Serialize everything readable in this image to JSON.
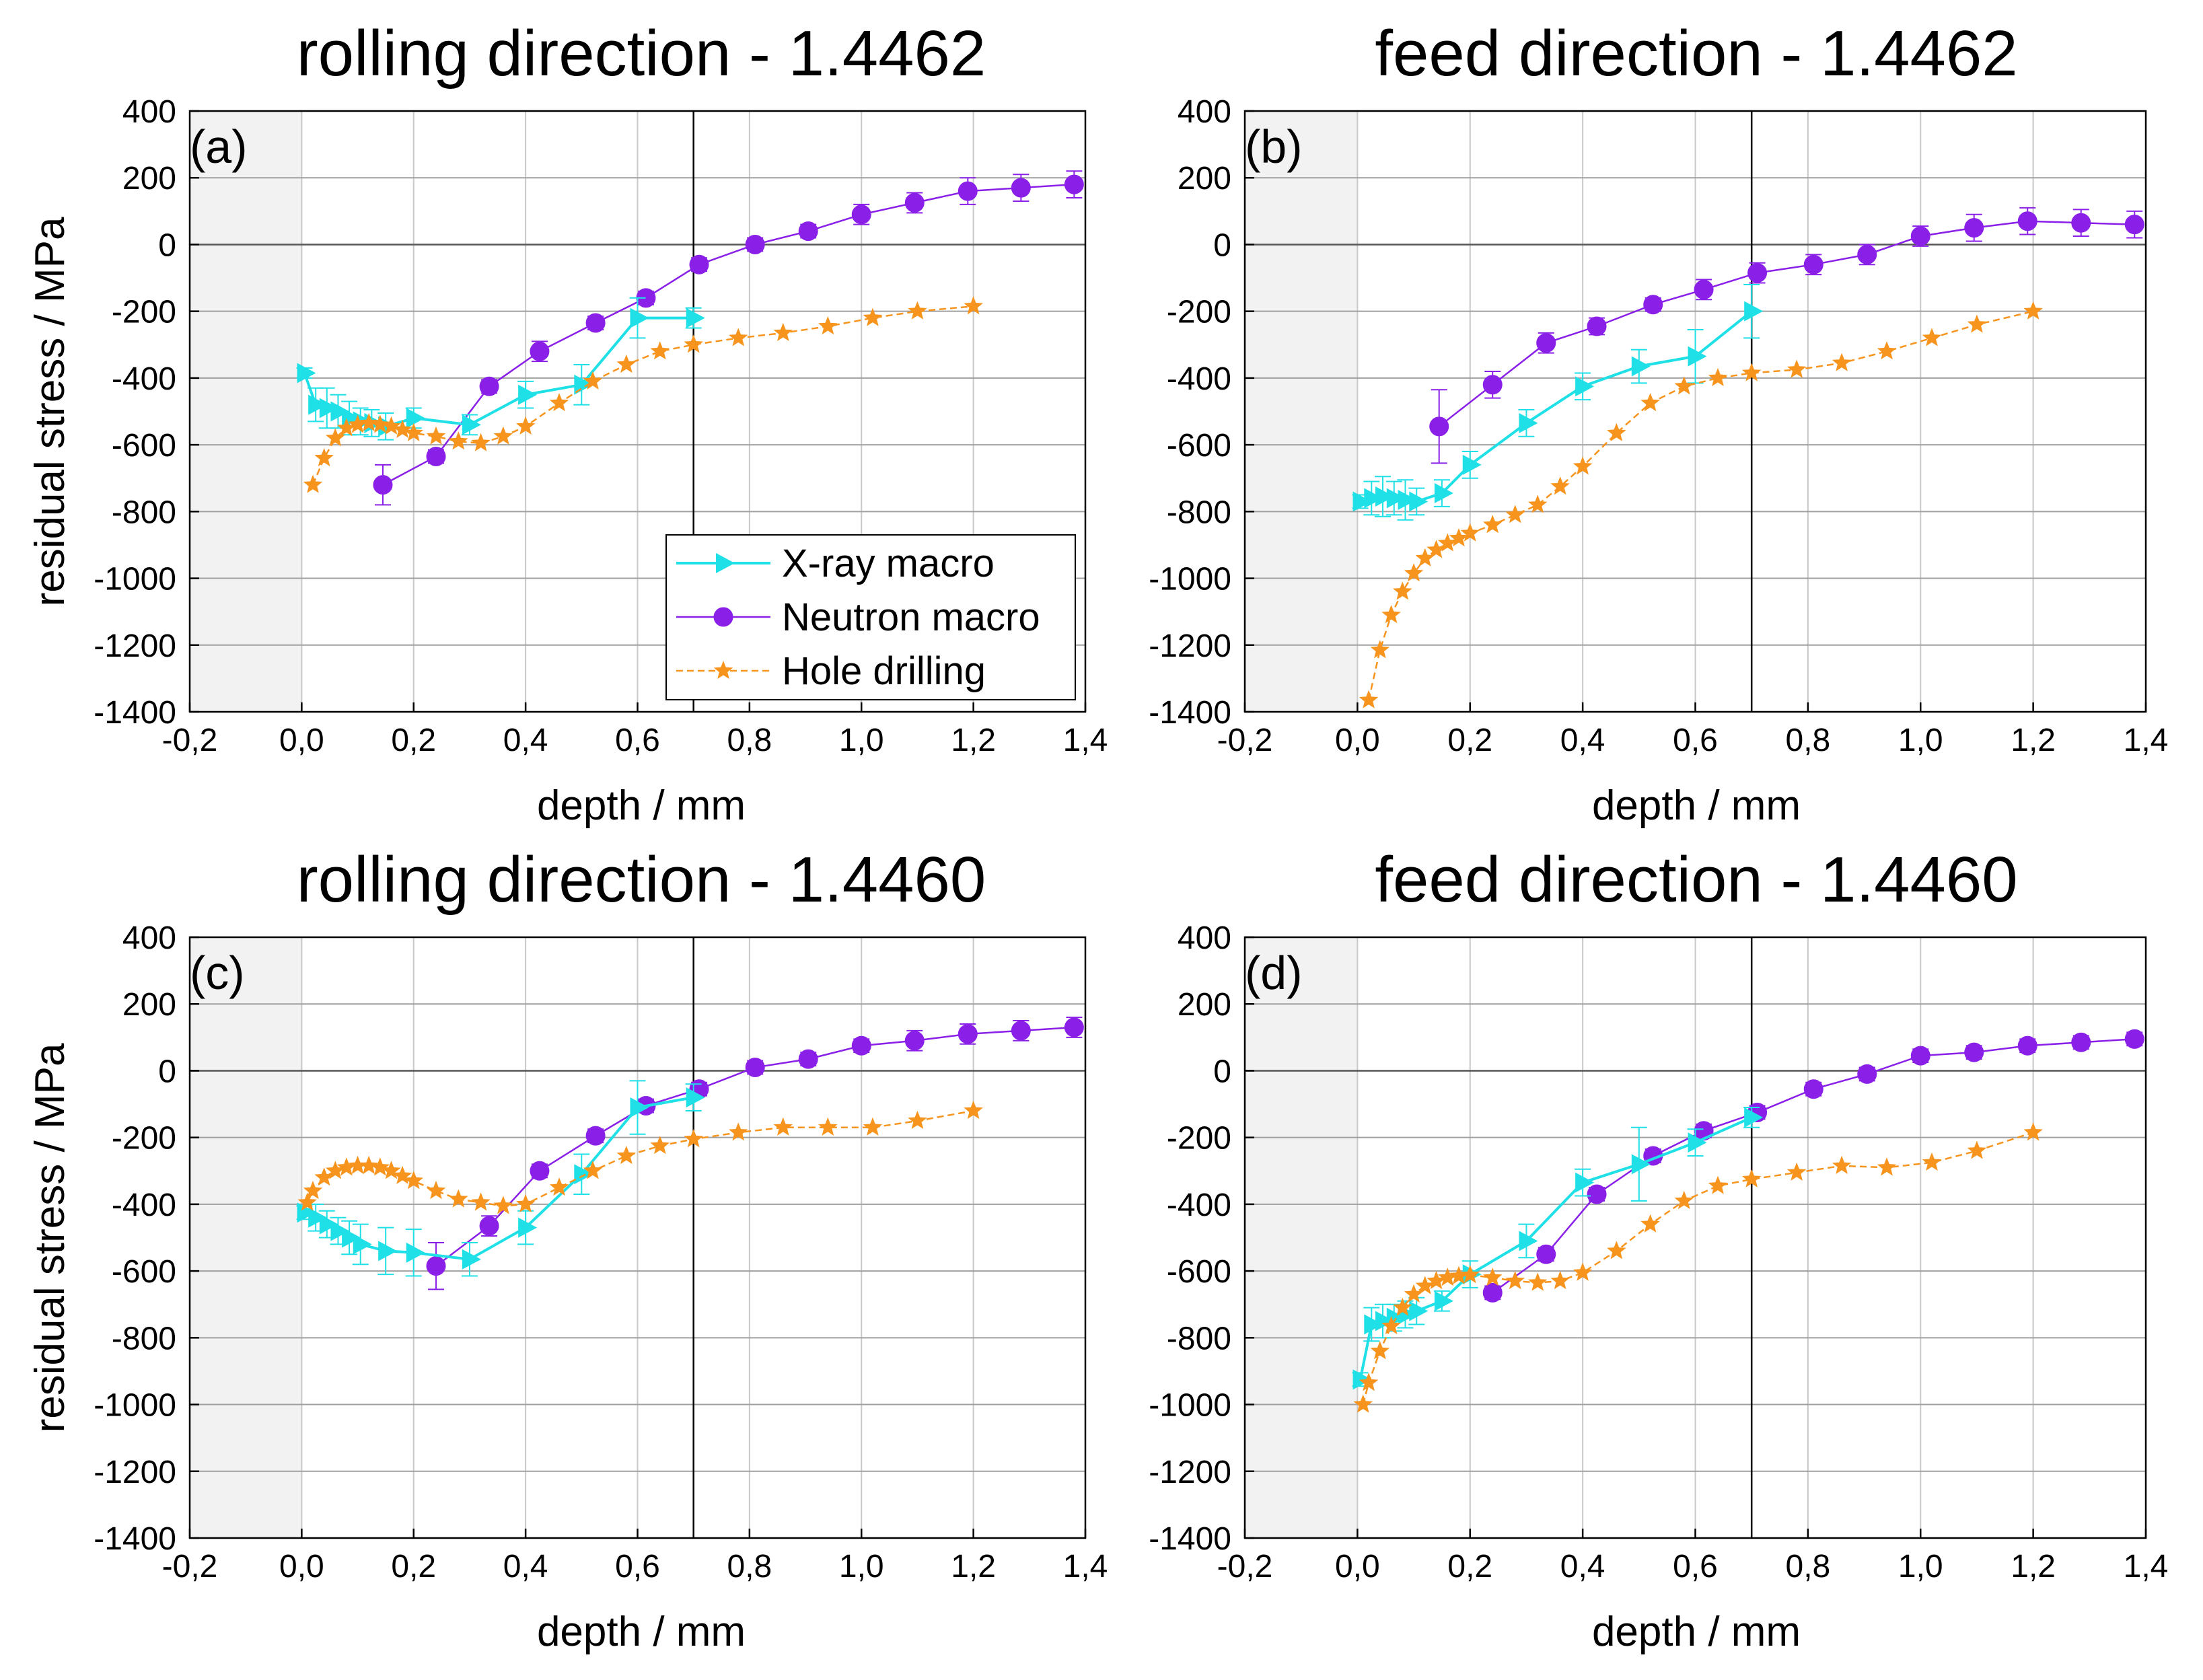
{
  "figure": {
    "x_ticks": [
      "-0,2",
      "0,0",
      "0,2",
      "0,4",
      "0,6",
      "0,8",
      "1,0",
      "1,2",
      "1,4"
    ],
    "y_ticks": [
      "400",
      "200",
      "0",
      "-200",
      "-400",
      "-600",
      "-800",
      "-1000",
      "-1200",
      "-1400"
    ],
    "colors": {
      "xray": "#1fe0e6",
      "neutron": "#8a20e8",
      "hole": "#f7941d"
    },
    "markers": {
      "xray": "triangle-right",
      "neutron": "circle",
      "hole": "star"
    },
    "shaded_region_x": [
      -0.2,
      0.0
    ],
    "vertical_line_x": 0.7,
    "legend": {
      "placement": "bottom-right of panel (a)",
      "entries": [
        "X-ray macro",
        "Neutron macro",
        "Hole drilling"
      ]
    }
  },
  "chart_data": [
    {
      "type": "line",
      "panel_label": "(a)",
      "title": "rolling direction - 1.4462",
      "xlabel": "depth / mm",
      "ylabel": "residual stress / MPa",
      "xlim": [
        -0.2,
        1.4
      ],
      "ylim": [
        -1400,
        400
      ],
      "grid": true,
      "series": [
        {
          "name": "X-ray macro",
          "key": "xray",
          "x": [
            0.005,
            0.025,
            0.045,
            0.065,
            0.085,
            0.105,
            0.125,
            0.15,
            0.2,
            0.3,
            0.4,
            0.5,
            0.6,
            0.7
          ],
          "y": [
            -385,
            -480,
            -490,
            -500,
            -520,
            -530,
            -535,
            -545,
            -520,
            -540,
            -450,
            -420,
            -220,
            -220
          ],
          "err": [
            15,
            50,
            60,
            50,
            50,
            40,
            40,
            40,
            30,
            30,
            40,
            60,
            60,
            30
          ]
        },
        {
          "name": "Neutron macro",
          "key": "neutron",
          "x": [
            0.145,
            0.24,
            0.335,
            0.425,
            0.525,
            0.615,
            0.71,
            0.81,
            0.905,
            1.0,
            1.095,
            1.19,
            1.285,
            1.38
          ],
          "y": [
            -720,
            -635,
            -425,
            -320,
            -235,
            -160,
            -60,
            0,
            40,
            90,
            125,
            160,
            170,
            180
          ],
          "err": [
            60,
            20,
            20,
            30,
            20,
            20,
            20,
            20,
            20,
            30,
            30,
            40,
            40,
            40
          ]
        },
        {
          "name": "Hole drilling",
          "key": "hole",
          "x": [
            0.02,
            0.04,
            0.06,
            0.08,
            0.1,
            0.12,
            0.14,
            0.16,
            0.18,
            0.2,
            0.24,
            0.28,
            0.32,
            0.36,
            0.4,
            0.46,
            0.52,
            0.58,
            0.64,
            0.7,
            0.78,
            0.86,
            0.94,
            1.02,
            1.1,
            1.2
          ],
          "y": [
            -720,
            -640,
            -580,
            -550,
            -540,
            -535,
            -540,
            -545,
            -555,
            -565,
            -575,
            -590,
            -595,
            -575,
            -545,
            -475,
            -410,
            -360,
            -320,
            -300,
            -280,
            -265,
            -245,
            -220,
            -200,
            -185
          ]
        }
      ]
    },
    {
      "type": "line",
      "panel_label": "(b)",
      "title": "feed direction - 1.4462",
      "xlabel": "depth / mm",
      "ylabel": "",
      "xlim": [
        -0.2,
        1.4
      ],
      "ylim": [
        -1400,
        400
      ],
      "grid": true,
      "series": [
        {
          "name": "X-ray macro",
          "key": "xray",
          "x": [
            0.005,
            0.025,
            0.045,
            0.065,
            0.085,
            0.105,
            0.15,
            0.2,
            0.3,
            0.4,
            0.5,
            0.6,
            0.7
          ],
          "y": [
            -770,
            -760,
            -755,
            -760,
            -765,
            -770,
            -745,
            -660,
            -535,
            -425,
            -365,
            -335,
            -200
          ],
          "err": [
            20,
            50,
            60,
            50,
            60,
            40,
            40,
            40,
            40,
            40,
            50,
            80,
            80
          ]
        },
        {
          "name": "Neutron macro",
          "key": "neutron",
          "x": [
            0.145,
            0.24,
            0.335,
            0.425,
            0.525,
            0.615,
            0.71,
            0.81,
            0.905,
            1.0,
            1.095,
            1.19,
            1.285,
            1.38
          ],
          "y": [
            -545,
            -420,
            -295,
            -245,
            -180,
            -135,
            -85,
            -60,
            -30,
            25,
            50,
            70,
            65,
            60
          ],
          "err": [
            110,
            40,
            30,
            25,
            20,
            30,
            30,
            30,
            30,
            30,
            40,
            40,
            40,
            40
          ]
        },
        {
          "name": "Hole drilling",
          "key": "hole",
          "x": [
            0.02,
            0.04,
            0.06,
            0.08,
            0.1,
            0.12,
            0.14,
            0.16,
            0.18,
            0.2,
            0.24,
            0.28,
            0.32,
            0.36,
            0.4,
            0.46,
            0.52,
            0.58,
            0.64,
            0.7,
            0.78,
            0.86,
            0.94,
            1.02,
            1.1,
            1.2
          ],
          "y": [
            -1365,
            -1215,
            -1110,
            -1040,
            -985,
            -940,
            -915,
            -895,
            -880,
            -865,
            -840,
            -810,
            -780,
            -725,
            -665,
            -565,
            -475,
            -425,
            -400,
            -385,
            -375,
            -355,
            -320,
            -280,
            -240,
            -200
          ]
        }
      ]
    },
    {
      "type": "line",
      "panel_label": "(c)",
      "title": "rolling direction - 1.4460",
      "xlabel": "depth / mm",
      "ylabel": "residual stress / MPa",
      "xlim": [
        -0.2,
        1.4
      ],
      "ylim": [
        -1400,
        400
      ],
      "grid": true,
      "series": [
        {
          "name": "X-ray macro",
          "key": "xray",
          "x": [
            0.005,
            0.025,
            0.045,
            0.065,
            0.085,
            0.105,
            0.15,
            0.2,
            0.3,
            0.4,
            0.5,
            0.6,
            0.7
          ],
          "y": [
            -425,
            -440,
            -460,
            -480,
            -500,
            -520,
            -540,
            -545,
            -565,
            -470,
            -310,
            -110,
            -80
          ],
          "err": [
            20,
            40,
            40,
            40,
            50,
            60,
            70,
            70,
            50,
            50,
            60,
            80,
            40
          ]
        },
        {
          "name": "Neutron macro",
          "key": "neutron",
          "x": [
            0.24,
            0.335,
            0.425,
            0.525,
            0.615,
            0.71,
            0.81,
            0.905,
            1.0,
            1.095,
            1.19,
            1.285,
            1.38
          ],
          "y": [
            -585,
            -465,
            -300,
            -195,
            -105,
            -55,
            10,
            35,
            75,
            90,
            110,
            120,
            130
          ],
          "err": [
            70,
            30,
            20,
            20,
            20,
            20,
            20,
            20,
            20,
            30,
            30,
            30,
            30
          ]
        },
        {
          "name": "Hole drilling",
          "key": "hole",
          "x": [
            0.01,
            0.02,
            0.04,
            0.06,
            0.08,
            0.1,
            0.12,
            0.14,
            0.16,
            0.18,
            0.2,
            0.24,
            0.28,
            0.32,
            0.36,
            0.4,
            0.46,
            0.52,
            0.58,
            0.64,
            0.7,
            0.78,
            0.86,
            0.94,
            1.02,
            1.1,
            1.2
          ],
          "y": [
            -395,
            -360,
            -320,
            -300,
            -290,
            -285,
            -285,
            -290,
            -300,
            -315,
            -330,
            -360,
            -385,
            -395,
            -405,
            -400,
            -350,
            -300,
            -255,
            -225,
            -205,
            -185,
            -170,
            -170,
            -170,
            -150,
            -120
          ]
        }
      ]
    },
    {
      "type": "line",
      "panel_label": "(d)",
      "title": "feed direction - 1.4460",
      "xlabel": "depth / mm",
      "ylabel": "",
      "xlim": [
        -0.2,
        1.4
      ],
      "ylim": [
        -1400,
        400
      ],
      "grid": true,
      "series": [
        {
          "name": "X-ray macro",
          "key": "xray",
          "x": [
            0.005,
            0.025,
            0.045,
            0.065,
            0.085,
            0.105,
            0.15,
            0.2,
            0.3,
            0.4,
            0.5,
            0.6,
            0.7
          ],
          "y": [
            -925,
            -760,
            -750,
            -740,
            -730,
            -720,
            -690,
            -610,
            -510,
            -335,
            -280,
            -215,
            -140
          ],
          "err": [
            20,
            50,
            50,
            40,
            40,
            40,
            30,
            40,
            50,
            40,
            110,
            40,
            30
          ]
        },
        {
          "name": "Neutron macro",
          "key": "neutron",
          "x": [
            0.24,
            0.335,
            0.425,
            0.525,
            0.615,
            0.71,
            0.81,
            0.905,
            1.0,
            1.095,
            1.19,
            1.285,
            1.38
          ],
          "y": [
            -665,
            -550,
            -370,
            -255,
            -180,
            -125,
            -55,
            -10,
            45,
            55,
            75,
            85,
            95
          ],
          "err": [
            20,
            20,
            20,
            20,
            20,
            20,
            20,
            20,
            20,
            20,
            20,
            20,
            20
          ]
        },
        {
          "name": "Hole drilling",
          "key": "hole",
          "x": [
            0.01,
            0.02,
            0.04,
            0.06,
            0.08,
            0.1,
            0.12,
            0.14,
            0.16,
            0.18,
            0.2,
            0.24,
            0.28,
            0.32,
            0.36,
            0.4,
            0.46,
            0.52,
            0.58,
            0.64,
            0.7,
            0.78,
            0.86,
            0.94,
            1.02,
            1.1,
            1.2
          ],
          "y": [
            -1000,
            -935,
            -840,
            -765,
            -710,
            -670,
            -645,
            -630,
            -620,
            -615,
            -612,
            -620,
            -630,
            -635,
            -630,
            -605,
            -540,
            -460,
            -390,
            -345,
            -325,
            -305,
            -285,
            -290,
            -275,
            -240,
            -185
          ]
        }
      ]
    }
  ]
}
